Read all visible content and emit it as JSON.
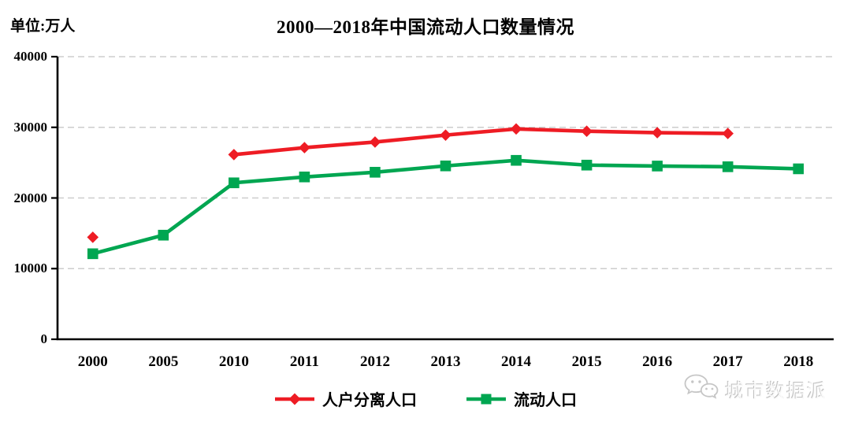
{
  "unit_label": "单位:万人",
  "title": "2000—2018年中国流动人口数量情况",
  "watermark": {
    "text": "城市数据派",
    "icon": "wechat-chat-bubbles"
  },
  "colors": {
    "red_series": "#ee1c24",
    "green_series": "#00a651",
    "gridline": "#cdcdcd",
    "axis": "#000000",
    "watermark_gray": "#c6c6c6"
  },
  "chart_data": {
    "type": "line",
    "title": "2000—2018年中国流动人口数量情况",
    "unit": "万人",
    "categories": [
      "2000",
      "2005",
      "2010",
      "2011",
      "2012",
      "2013",
      "2014",
      "2015",
      "2016",
      "2017",
      "2018"
    ],
    "series": [
      {
        "name": "人户分离人口",
        "color": "#ee1c24",
        "marker": "diamond",
        "values": [
          14439,
          null,
          26139,
          27123,
          27917,
          28898,
          29768,
          29447,
          29239,
          29129,
          null
        ]
      },
      {
        "name": "流动人口",
        "color": "#00a651",
        "marker": "square",
        "values": [
          12107,
          14735,
          22143,
          22978,
          23641,
          24539,
          25324,
          24651,
          24521,
          24419,
          24126
        ]
      }
    ],
    "ylim": [
      0,
      40000
    ],
    "yticks": [
      0,
      10000,
      20000,
      30000,
      40000
    ],
    "grid": "dashed-horizontal",
    "legend_position": "bottom"
  }
}
